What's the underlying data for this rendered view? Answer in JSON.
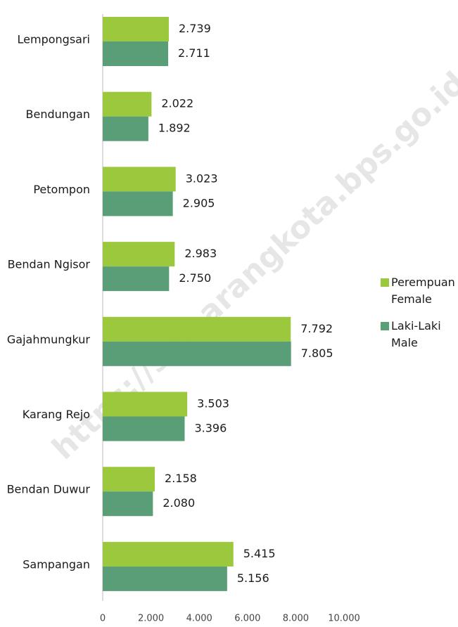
{
  "chart_data": {
    "type": "hbar",
    "watermark": "https://semarangkota.bps.go.id",
    "categories": [
      "Lempongsari",
      "Bendungan",
      "Petompon",
      "Bendan Ngisor",
      "Gajahmungkur",
      "Karang Rejo",
      "Bendan Duwur",
      "Sampangan"
    ],
    "series": [
      {
        "name": "Perempuan\nFemale",
        "color": "#9bc83c",
        "values": [
          2739,
          2022,
          3023,
          2983,
          7792,
          3503,
          2158,
          5415
        ],
        "value_labels": [
          "2.739",
          "2.022",
          "3.023",
          "2.983",
          "7.792",
          "3.503",
          "2.158",
          "5.415"
        ]
      },
      {
        "name": "Laki-Laki\nMale",
        "color": "#5a9e77",
        "values": [
          2711,
          1892,
          2905,
          2750,
          7805,
          3396,
          2080,
          5156
        ],
        "value_labels": [
          "2.711",
          "1.892",
          "2.905",
          "2.750",
          "7.805",
          "3.396",
          "2.080",
          "5.156"
        ]
      }
    ],
    "xlim": [
      0,
      10000
    ],
    "xticks": [
      0,
      {
        "value": 2000,
        "label": "2.000"
      },
      {
        "value": 4000,
        "label": "4.000"
      },
      {
        "value": 6000,
        "label": "6.000"
      },
      {
        "value": 8000,
        "label": "8.000"
      },
      {
        "value": 10000,
        "label": "10.000"
      }
    ],
    "legend": "right"
  }
}
